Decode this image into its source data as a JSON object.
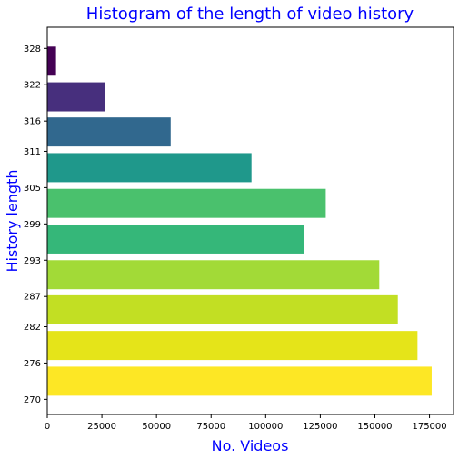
{
  "chart_data": {
    "type": "bar",
    "orientation": "horizontal",
    "title": "Histogram of the length of video history",
    "xlabel": "No. Videos",
    "ylabel": "History length",
    "xlim": [
      0,
      186000
    ],
    "ylim": [
      267.5,
      331.5
    ],
    "grid": false,
    "x_ticks": [
      0,
      25000,
      50000,
      75000,
      100000,
      125000,
      150000,
      175000
    ],
    "x_tick_labels": [
      "0",
      "25000",
      "50000",
      "75000",
      "100000",
      "125000",
      "150000",
      "175000"
    ],
    "y_ticks": [
      270,
      276,
      282,
      287,
      293,
      299,
      305,
      311,
      316,
      322,
      328
    ],
    "y_tick_labels": [
      "270",
      "276",
      "282",
      "287",
      "293",
      "299",
      "305",
      "311",
      "316",
      "322",
      "328"
    ],
    "bars": [
      {
        "y": 273.0,
        "value": 176000,
        "color": "#fde725"
      },
      {
        "y": 278.9,
        "value": 169500,
        "color": "#e5e419"
      },
      {
        "y": 284.8,
        "value": 160500,
        "color": "#c2df23"
      },
      {
        "y": 290.6,
        "value": 152000,
        "color": "#a2da37"
      },
      {
        "y": 296.5,
        "value": 117500,
        "color": "#35b779"
      },
      {
        "y": 302.4,
        "value": 127500,
        "color": "#4ac16d"
      },
      {
        "y": 308.3,
        "value": 93500,
        "color": "#1f988b"
      },
      {
        "y": 314.2,
        "value": 56500,
        "color": "#31688e"
      },
      {
        "y": 320.0,
        "value": 26500,
        "color": "#472f7d"
      },
      {
        "y": 325.9,
        "value": 4000,
        "color": "#440154"
      }
    ]
  }
}
